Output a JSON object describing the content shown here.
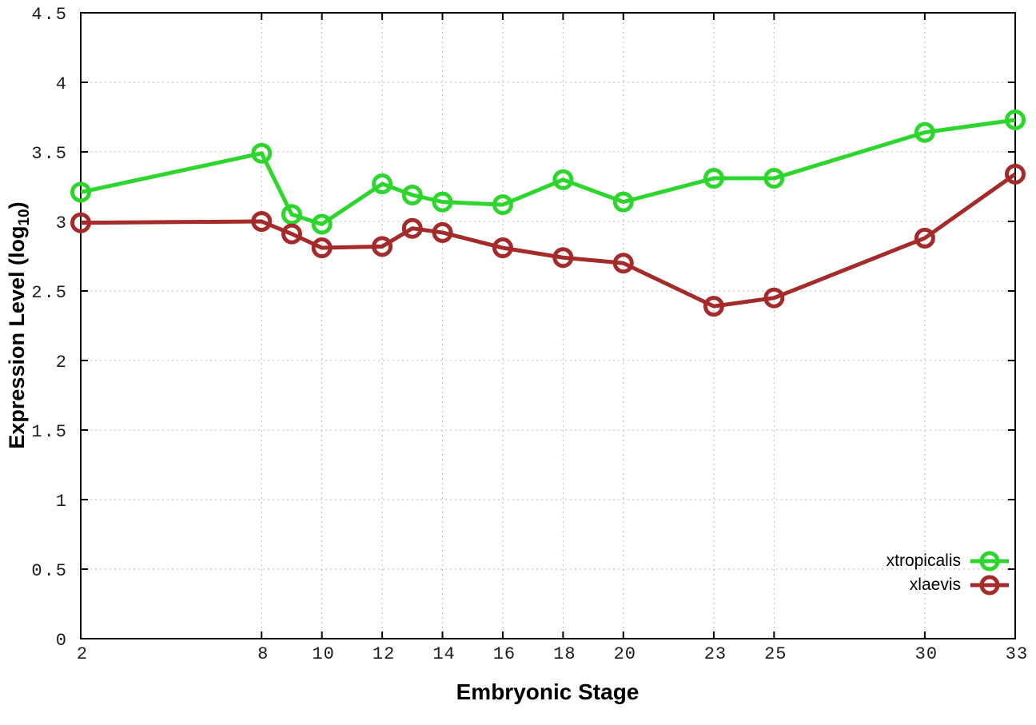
{
  "figure": {
    "x_axis_title": "Embryonic Stage",
    "y_axis_title": {
      "pre": "Expression Level (log",
      "sub": "10",
      "post": ")"
    },
    "background_color": "#ffffff",
    "axis_color": "#000000",
    "grid_color": "#b8b8b8"
  },
  "chart_data": {
    "type": "line",
    "title": "",
    "xlabel": "Embryonic Stage",
    "ylabel": "Expression Level (log10)",
    "x": [
      2,
      8,
      9,
      10,
      12,
      13,
      14,
      16,
      18,
      20,
      23,
      25,
      30,
      33
    ],
    "series": [
      {
        "name": "xtropicalis",
        "color": "#2dd62d",
        "values": [
          3.21,
          3.49,
          3.05,
          2.98,
          3.27,
          3.19,
          3.14,
          3.12,
          3.3,
          3.14,
          3.31,
          3.31,
          3.64,
          3.73
        ]
      },
      {
        "name": "xlaevis",
        "color": "#a52a2a",
        "values": [
          2.99,
          3.0,
          2.91,
          2.81,
          2.82,
          2.95,
          2.92,
          2.81,
          2.74,
          2.7,
          2.39,
          2.45,
          2.88,
          3.34
        ]
      }
    ],
    "xlim": [
      2,
      33
    ],
    "ylim": [
      0,
      4.5
    ],
    "x_ticks": [
      2,
      8,
      10,
      12,
      14,
      16,
      18,
      20,
      23,
      25,
      30,
      33
    ],
    "x_tick_labels": [
      "2",
      "8",
      "10",
      "12",
      "14",
      "16",
      "18",
      "20",
      "23",
      "25",
      "30",
      "33"
    ],
    "y_ticks": [
      0,
      0.5,
      1,
      1.5,
      2,
      2.5,
      3,
      3.5,
      4,
      4.5
    ],
    "y_tick_labels": [
      "0",
      "0.5",
      "1",
      "1.5",
      "2",
      "2.5",
      "3",
      "3.5",
      "4",
      "4.5"
    ],
    "grid": true,
    "marker": "open-circle",
    "legend_position": "bottom-right"
  }
}
